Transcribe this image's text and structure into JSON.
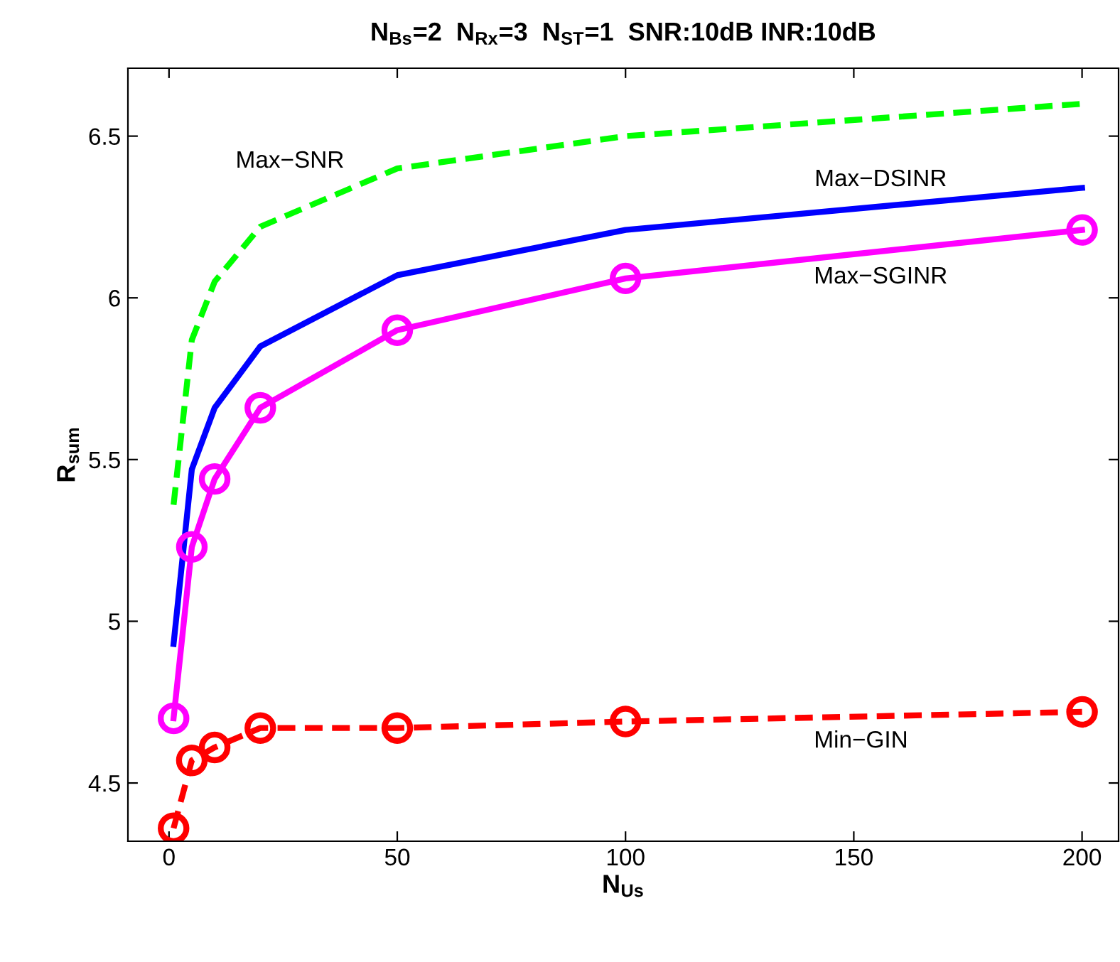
{
  "chart_data": {
    "type": "line",
    "title": "N$_{Bs}$=2  N$_{Rx}$=3  N$_{ST}$=1  SNR:10dB INR:10dB",
    "xlabel": "N$_{Us}$",
    "ylabel": "R$_{sum}$",
    "x": [
      1,
      5,
      10,
      20,
      50,
      100,
      200
    ],
    "xlim": [
      -9,
      208
    ],
    "xticks": [
      0,
      50,
      100,
      150,
      200
    ],
    "ylim": [
      4.32,
      6.71
    ],
    "yticks": [
      4.5,
      5,
      5.5,
      6,
      6.5
    ],
    "grid": false,
    "legend": false,
    "series": [
      {
        "name": "Max−SNR",
        "color": "#00ff00",
        "line_style": "dashed",
        "marker": "none",
        "values": [
          5.36,
          5.87,
          6.05,
          6.22,
          6.4,
          6.5,
          6.6
        ]
      },
      {
        "name": "Max−DSINR",
        "color": "#0000ff",
        "line_style": "solid",
        "marker": "none",
        "values": [
          4.93,
          5.47,
          5.66,
          5.85,
          6.07,
          6.21,
          6.34
        ]
      },
      {
        "name": "Max−SGINR",
        "color": "#ff00ff",
        "line_style": "solid",
        "marker": "circle",
        "values": [
          4.7,
          5.23,
          5.44,
          5.66,
          5.9,
          6.06,
          6.21
        ]
      },
      {
        "name": "Min−GIN",
        "color": "#ff0000",
        "line_style": "dashed",
        "marker": "circle",
        "values": [
          4.36,
          4.57,
          4.61,
          4.67,
          4.67,
          4.69,
          4.72
        ]
      }
    ]
  }
}
